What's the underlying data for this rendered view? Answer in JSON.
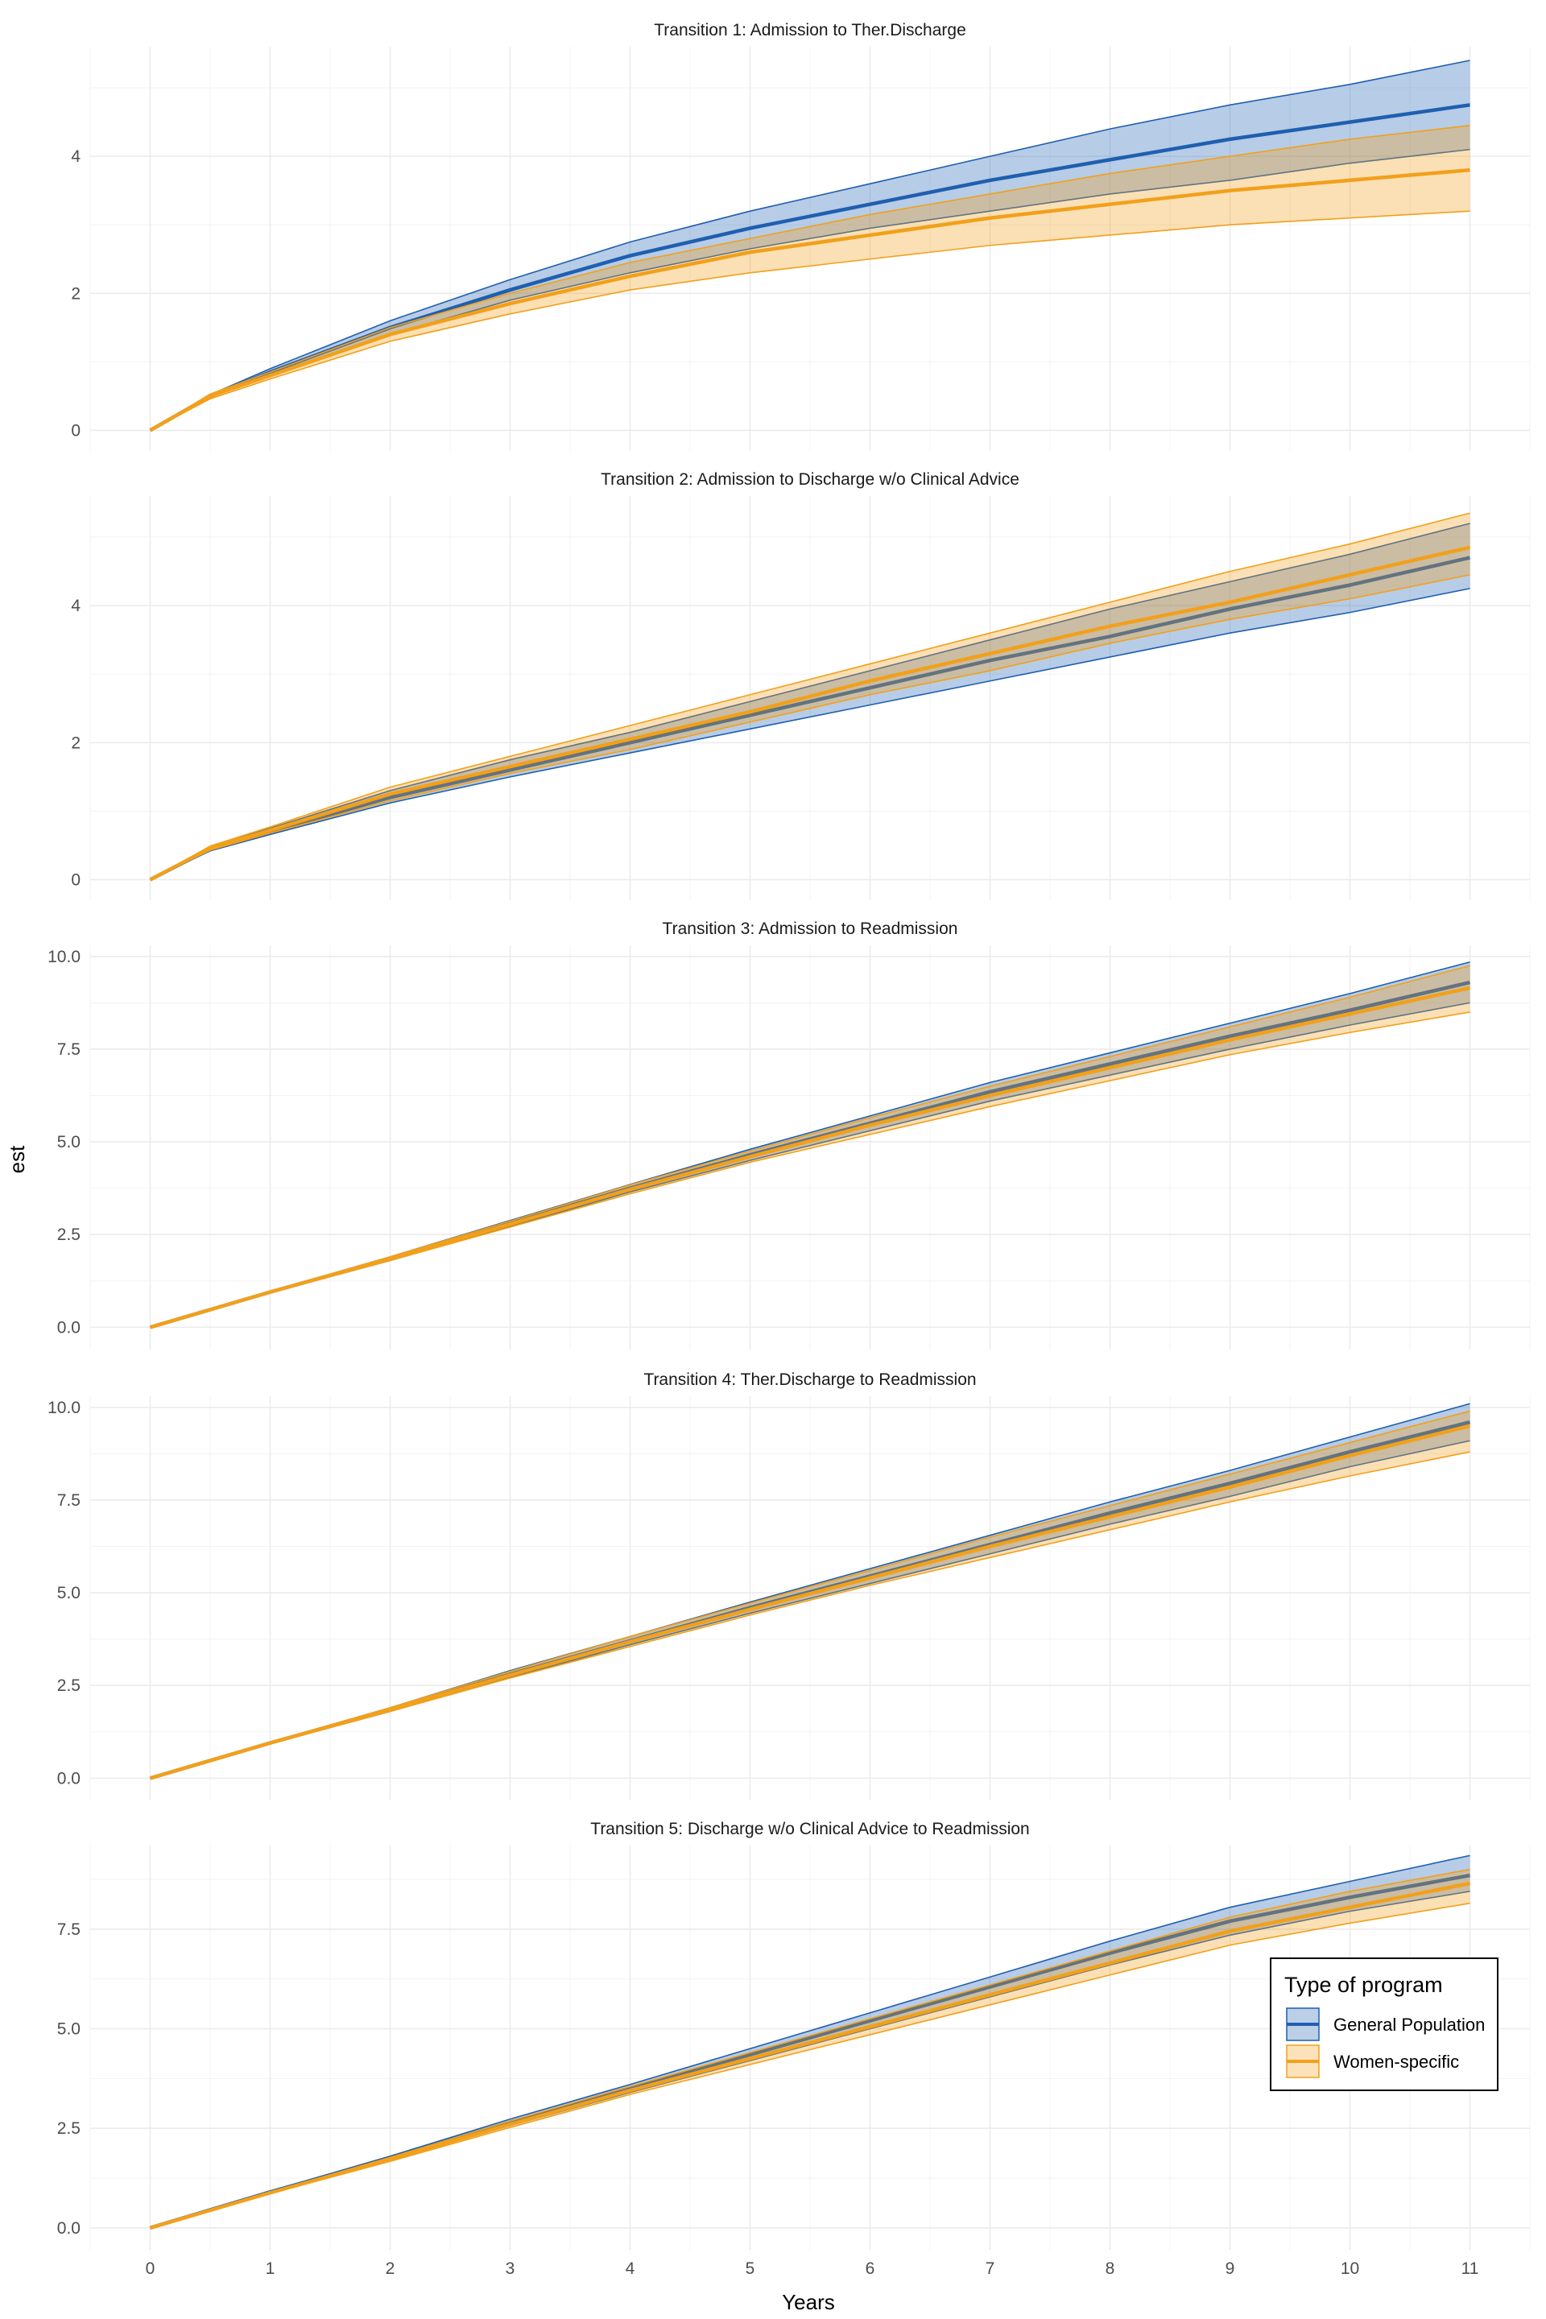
{
  "chart_data": {
    "type": "area",
    "xlabel": "Years",
    "ylabel": "est",
    "x_ticks": [
      "0",
      "1",
      "2",
      "3",
      "4",
      "5",
      "6",
      "7",
      "8",
      "9",
      "10",
      "11"
    ],
    "xlim": [
      -0.5,
      11.5
    ],
    "grid": true,
    "legend": {
      "title": "Type of program",
      "placement": "bottom-right, inside last panel",
      "entries": [
        {
          "name": "General Population",
          "color": "#1f5fb0"
        },
        {
          "name": "Women-specific",
          "color": "#f2a01a"
        }
      ]
    },
    "panels": [
      {
        "title": "Transition 1: Admission to Ther.Discharge",
        "ylim": [
          -0.3,
          5.6
        ],
        "y_ticks": [
          0,
          2,
          4
        ],
        "y_tick_labels": [
          "0",
          "2",
          "4"
        ],
        "series": [
          {
            "name": "General Population",
            "color": "#1f5fb0",
            "x": [
              0,
              0.5,
              1,
              2,
              3,
              4,
              5,
              6,
              7,
              8,
              9,
              10,
              11
            ],
            "est": [
              0,
              0.5,
              0.85,
              1.5,
              2.05,
              2.55,
              2.95,
              3.3,
              3.65,
              3.95,
              4.25,
              4.5,
              4.75
            ],
            "lower": [
              0,
              0.48,
              0.8,
              1.4,
              1.9,
              2.3,
              2.65,
              2.95,
              3.2,
              3.45,
              3.65,
              3.9,
              4.1
            ],
            "upper": [
              0,
              0.52,
              0.9,
              1.6,
              2.2,
              2.75,
              3.2,
              3.6,
              4.0,
              4.4,
              4.75,
              5.05,
              5.4
            ]
          },
          {
            "name": "Women-specific",
            "color": "#f2a01a",
            "x": [
              0,
              0.5,
              1,
              2,
              3,
              4,
              5,
              6,
              7,
              8,
              9,
              10,
              11
            ],
            "est": [
              0,
              0.5,
              0.8,
              1.4,
              1.85,
              2.25,
              2.6,
              2.85,
              3.1,
              3.3,
              3.5,
              3.65,
              3.8
            ],
            "lower": [
              0,
              0.46,
              0.75,
              1.3,
              1.7,
              2.05,
              2.3,
              2.5,
              2.7,
              2.85,
              3.0,
              3.1,
              3.2
            ],
            "upper": [
              0,
              0.53,
              0.85,
              1.5,
              2.0,
              2.45,
              2.8,
              3.15,
              3.45,
              3.75,
              4.0,
              4.25,
              4.45
            ]
          }
        ]
      },
      {
        "title": "Transition 2: Admission to Discharge w/o Clinical Advice",
        "ylim": [
          -0.3,
          5.6
        ],
        "y_ticks": [
          0,
          2,
          4
        ],
        "y_tick_labels": [
          "0",
          "2",
          "4"
        ],
        "series": [
          {
            "name": "General Population",
            "color": "#1f5fb0",
            "x": [
              0,
              0.5,
              1,
              2,
              3,
              4,
              5,
              6,
              7,
              8,
              9,
              10,
              11
            ],
            "est": [
              0,
              0.45,
              0.7,
              1.2,
              1.6,
              2.0,
              2.4,
              2.8,
              3.2,
              3.55,
              3.95,
              4.3,
              4.7
            ],
            "lower": [
              0,
              0.42,
              0.66,
              1.12,
              1.5,
              1.85,
              2.2,
              2.55,
              2.9,
              3.25,
              3.6,
              3.9,
              4.25
            ],
            "upper": [
              0,
              0.48,
              0.75,
              1.3,
              1.75,
              2.15,
              2.6,
              3.05,
              3.5,
              3.95,
              4.35,
              4.75,
              5.2
            ]
          },
          {
            "name": "Women-specific",
            "color": "#f2a01a",
            "x": [
              0,
              0.5,
              1,
              2,
              3,
              4,
              5,
              6,
              7,
              8,
              9,
              10,
              11
            ],
            "est": [
              0,
              0.46,
              0.72,
              1.25,
              1.65,
              2.05,
              2.45,
              2.9,
              3.3,
              3.7,
              4.05,
              4.45,
              4.85
            ],
            "lower": [
              0,
              0.43,
              0.68,
              1.15,
              1.55,
              1.9,
              2.3,
              2.7,
              3.05,
              3.45,
              3.8,
              4.1,
              4.45
            ],
            "upper": [
              0,
              0.49,
              0.77,
              1.35,
              1.8,
              2.25,
              2.7,
              3.15,
              3.6,
              4.05,
              4.5,
              4.9,
              5.35
            ]
          }
        ]
      },
      {
        "title": "Transition 3: Admission to Readmission",
        "ylim": [
          -0.6,
          10.3
        ],
        "y_ticks": [
          0,
          2.5,
          5,
          7.5,
          10
        ],
        "y_tick_labels": [
          "0.0",
          "2.5",
          "5.0",
          "7.5",
          "10.0"
        ],
        "series": [
          {
            "name": "General Population",
            "color": "#1f5fb0",
            "x": [
              0,
              1,
              2,
              3,
              4,
              5,
              6,
              7,
              8,
              9,
              10,
              11
            ],
            "est": [
              0,
              0.95,
              1.85,
              2.8,
              3.75,
              4.65,
              5.5,
              6.35,
              7.1,
              7.85,
              8.55,
              9.3
            ],
            "lower": [
              0,
              0.93,
              1.8,
              2.72,
              3.65,
              4.5,
              5.3,
              6.1,
              6.8,
              7.5,
              8.15,
              8.75
            ],
            "upper": [
              0,
              0.97,
              1.9,
              2.88,
              3.85,
              4.8,
              5.7,
              6.6,
              7.4,
              8.2,
              9.0,
              9.85
            ]
          },
          {
            "name": "Women-specific",
            "color": "#f2a01a",
            "x": [
              0,
              1,
              2,
              3,
              4,
              5,
              6,
              7,
              8,
              9,
              10,
              11
            ],
            "est": [
              0,
              0.95,
              1.85,
              2.78,
              3.72,
              4.6,
              5.45,
              6.25,
              7.0,
              7.75,
              8.45,
              9.15
            ],
            "lower": [
              0,
              0.93,
              1.8,
              2.7,
              3.6,
              4.45,
              5.2,
              5.95,
              6.65,
              7.35,
              7.95,
              8.5
            ],
            "upper": [
              0,
              0.97,
              1.9,
              2.86,
              3.84,
              4.75,
              5.65,
              6.5,
              7.3,
              8.1,
              8.9,
              9.75
            ]
          }
        ]
      },
      {
        "title": "Transition 4: Ther.Discharge to Readmission",
        "ylim": [
          -0.6,
          10.3
        ],
        "y_ticks": [
          0,
          2.5,
          5,
          7.5,
          10
        ],
        "y_tick_labels": [
          "0.0",
          "2.5",
          "5.0",
          "7.5",
          "10.0"
        ],
        "series": [
          {
            "name": "General Population",
            "color": "#1f5fb0",
            "x": [
              0,
              1,
              2,
              3,
              4,
              5,
              6,
              7,
              8,
              9,
              10,
              11
            ],
            "est": [
              0,
              0.95,
              1.85,
              2.8,
              3.7,
              4.6,
              5.45,
              6.3,
              7.15,
              7.95,
              8.8,
              9.6
            ],
            "lower": [
              0,
              0.93,
              1.8,
              2.72,
              3.6,
              4.45,
              5.25,
              6.05,
              6.85,
              7.6,
              8.4,
              9.1
            ],
            "upper": [
              0,
              0.97,
              1.9,
              2.9,
              3.82,
              4.75,
              5.65,
              6.55,
              7.45,
              8.3,
              9.2,
              10.1
            ]
          },
          {
            "name": "Women-specific",
            "color": "#f2a01a",
            "x": [
              0,
              1,
              2,
              3,
              4,
              5,
              6,
              7,
              8,
              9,
              10,
              11
            ],
            "est": [
              0,
              0.95,
              1.85,
              2.78,
              3.68,
              4.55,
              5.4,
              6.25,
              7.05,
              7.85,
              8.7,
              9.5
            ],
            "lower": [
              0,
              0.93,
              1.8,
              2.7,
              3.55,
              4.4,
              5.2,
              5.95,
              6.7,
              7.45,
              8.15,
              8.8
            ],
            "upper": [
              0,
              0.97,
              1.9,
              2.88,
              3.82,
              4.72,
              5.6,
              6.5,
              7.35,
              8.2,
              9.05,
              9.9
            ]
          }
        ]
      },
      {
        "title": "Transition 5: Discharge w/o Clinical Advice to Readmission",
        "ylim": [
          -0.55,
          9.6
        ],
        "y_ticks": [
          0,
          2.5,
          5,
          7.5
        ],
        "y_tick_labels": [
          "0.0",
          "2.5",
          "5.0",
          "7.5"
        ],
        "series": [
          {
            "name": "General Population",
            "color": "#1f5fb0",
            "x": [
              0,
              1,
              2,
              3,
              4,
              5,
              6,
              7,
              8,
              9,
              10,
              11
            ],
            "est": [
              0,
              0.9,
              1.75,
              2.65,
              3.5,
              4.35,
              5.2,
              6.05,
              6.9,
              7.7,
              8.3,
              8.85
            ],
            "lower": [
              0,
              0.88,
              1.7,
              2.57,
              3.4,
              4.2,
              5.0,
              5.8,
              6.6,
              7.35,
              7.95,
              8.45
            ],
            "upper": [
              0,
              0.92,
              1.8,
              2.73,
              3.6,
              4.5,
              5.4,
              6.3,
              7.2,
              8.05,
              8.7,
              9.35
            ]
          },
          {
            "name": "Women-specific",
            "color": "#f2a01a",
            "x": [
              0,
              1,
              2,
              3,
              4,
              5,
              6,
              7,
              8,
              9,
              10,
              11
            ],
            "est": [
              0,
              0.88,
              1.72,
              2.6,
              3.45,
              4.25,
              5.05,
              5.85,
              6.65,
              7.45,
              8.05,
              8.65
            ],
            "lower": [
              0,
              0.86,
              1.67,
              2.52,
              3.35,
              4.1,
              4.85,
              5.6,
              6.35,
              7.1,
              7.65,
              8.15
            ],
            "upper": [
              0,
              0.9,
              1.77,
              2.68,
              3.55,
              4.4,
              5.25,
              6.1,
              6.95,
              7.8,
              8.45,
              9.0
            ]
          }
        ]
      }
    ]
  }
}
